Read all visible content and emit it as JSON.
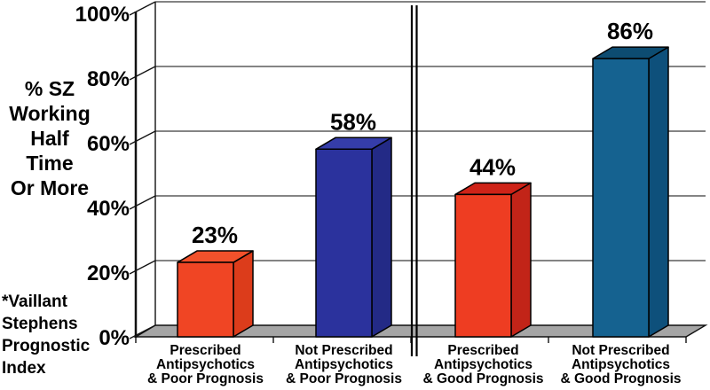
{
  "chart_data": {
    "type": "bar",
    "title": "",
    "ylabel": "% SZ Working Half Time Or More",
    "ylabel_lines": [
      "% SZ",
      "Working",
      "Half",
      "Time",
      "Or More"
    ],
    "footnote": "*Vaillant Stephens Prognostic Index",
    "footnote_lines": [
      "*Vaillant",
      "Stephens",
      "Prognostic",
      "Index"
    ],
    "yticks": [
      "100%",
      "80%",
      "60%",
      "40%",
      "20%",
      "0%"
    ],
    "ytick_values": [
      100,
      80,
      60,
      40,
      20,
      0
    ],
    "ylim": [
      0,
      100
    ],
    "grid": true,
    "legend": "none",
    "style": "3d-bars",
    "categories": [
      [
        "Prescribed",
        "Antipsychotics",
        "& Poor Prognosis"
      ],
      [
        "Not Prescribed",
        "Antipsychotics",
        "& Poor Prognosis"
      ],
      [
        "Prescribed",
        "Antipsychotics",
        "& Good Prognosis"
      ],
      [
        "Not Prescribed",
        "Antipsychotics",
        "& Good Prognosis"
      ]
    ],
    "values": [
      23,
      58,
      44,
      86
    ],
    "value_labels": [
      "23%",
      "58%",
      "44%",
      "86%"
    ],
    "bar_colors": [
      {
        "front": "#F04524",
        "top": "#F2512B",
        "side": "#DC3C1B"
      },
      {
        "front": "#2B329D",
        "top": "#353DA9",
        "side": "#232A86"
      },
      {
        "front": "#EE3D22",
        "top": "#CE2318",
        "side": "#C22418"
      },
      {
        "front": "#156290",
        "top": "#0D4C71",
        "side": "#0E507B"
      }
    ],
    "separator_after_category": 2,
    "colors": {
      "background": "#FFFFFF",
      "floor": "#A5A5A5",
      "grid": "#3A3A3A",
      "axis": "#111111",
      "text": "#000000"
    }
  }
}
